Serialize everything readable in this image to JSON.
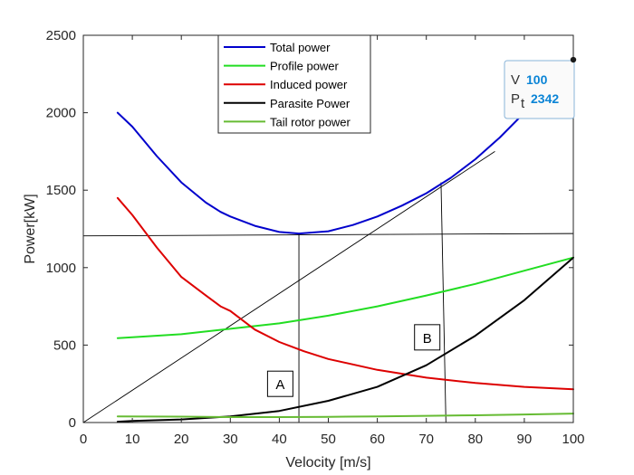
{
  "chart_data": {
    "type": "line",
    "title": "",
    "xlabel": "Velocity [m/s]",
    "ylabel": "Power[kW]",
    "xlim": [
      0,
      100
    ],
    "ylim": [
      0,
      2500
    ],
    "xticks": [
      "0",
      "10",
      "20",
      "30",
      "40",
      "50",
      "60",
      "70",
      "80",
      "90",
      "100"
    ],
    "yticks": [
      "0",
      "500",
      "1000",
      "1500",
      "2000",
      "2500"
    ],
    "grid": false,
    "legend_position": "top-center",
    "series": [
      {
        "name": "Total power",
        "color": "#0000cc",
        "x": [
          7,
          10,
          15,
          20,
          25,
          28,
          30,
          35,
          40,
          44,
          50,
          55,
          60,
          65,
          70,
          75,
          80,
          85,
          90,
          95,
          100
        ],
        "y": [
          2000,
          1910,
          1720,
          1550,
          1420,
          1360,
          1330,
          1270,
          1230,
          1220,
          1235,
          1275,
          1330,
          1400,
          1480,
          1580,
          1700,
          1840,
          2000,
          2170,
          2342
        ]
      },
      {
        "name": "Profile power",
        "color": "#22dd22",
        "x": [
          7,
          10,
          20,
          30,
          40,
          50,
          60,
          70,
          80,
          90,
          100
        ],
        "y": [
          545,
          550,
          570,
          605,
          640,
          690,
          750,
          820,
          895,
          980,
          1065
        ]
      },
      {
        "name": "Induced power",
        "color": "#dd0000",
        "x": [
          7,
          10,
          15,
          20,
          25,
          28,
          30,
          35,
          40,
          45,
          50,
          60,
          70,
          80,
          90,
          100
        ],
        "y": [
          1450,
          1340,
          1130,
          940,
          820,
          750,
          720,
          600,
          520,
          460,
          410,
          340,
          290,
          255,
          230,
          215
        ]
      },
      {
        "name": "Parasite Power",
        "color": "#000000",
        "x": [
          7,
          10,
          20,
          30,
          40,
          50,
          60,
          70,
          80,
          90,
          100
        ],
        "y": [
          5,
          10,
          20,
          40,
          75,
          140,
          230,
          370,
          560,
          790,
          1065
        ]
      },
      {
        "name": "Tail rotor power",
        "color": "#66bb33",
        "x": [
          7,
          20,
          30,
          40,
          50,
          60,
          70,
          80,
          90,
          100
        ],
        "y": [
          40,
          38,
          35,
          35,
          37,
          40,
          43,
          47,
          52,
          58
        ]
      }
    ],
    "reference_lines": [
      {
        "x": [
          0,
          100
        ],
        "y": [
          1205,
          1220
        ]
      },
      {
        "x": [
          0,
          84
        ],
        "y": [
          0,
          1750
        ]
      },
      {
        "x": [
          44,
          44
        ],
        "y": [
          1220,
          0
        ]
      },
      {
        "x": [
          73,
          74
        ],
        "y": [
          1550,
          0
        ]
      }
    ],
    "annotations": [
      {
        "text": "A",
        "x": 40,
        "y": 250
      },
      {
        "text": "B",
        "x": 70,
        "y": 550
      }
    ],
    "datatip": {
      "x_key": "V",
      "x_value": "100",
      "y_key": "P",
      "y_key_sub": "t",
      "y_value": "2342",
      "point": [
        100,
        2342
      ]
    }
  }
}
